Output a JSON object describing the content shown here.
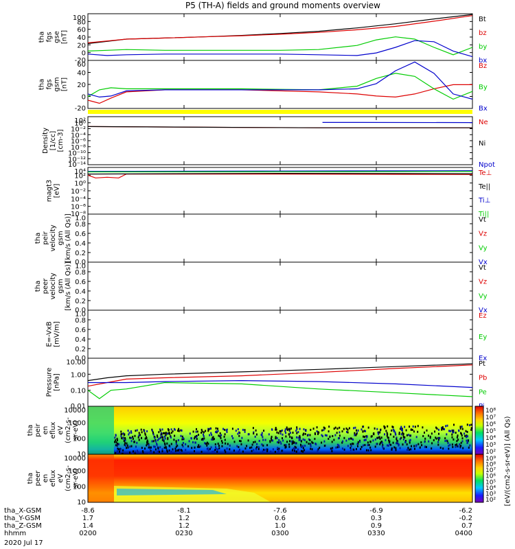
{
  "chart_data": {
    "type": "line",
    "title": "P5 (TH-A) fields and ground moments overview",
    "time_ticks": [
      "0200",
      "0230",
      "0300",
      "0330",
      "0400"
    ],
    "date_label": "2020 Jul 17",
    "ephemeris": {
      "rows": [
        {
          "label": "tha_X-GSM",
          "values": [
            "-8.6",
            "-8.1",
            "-7.6",
            "-6.9",
            "-6.2"
          ]
        },
        {
          "label": "tha_Y-GSM",
          "values": [
            "1.7",
            "1.2",
            "0.6",
            "0.3",
            "-0.2"
          ]
        },
        {
          "label": "tha_Z-GSM",
          "values": [
            "1.4",
            "1.2",
            "1.0",
            "0.9",
            "0.7"
          ]
        },
        {
          "label": "hhmm",
          "values": [
            "0200",
            "0230",
            "0300",
            "0330",
            "0400"
          ]
        }
      ]
    },
    "panels": [
      {
        "ylabel": [
          "tha",
          "fgs",
          "gse",
          "[nT]"
        ],
        "yticks": [
          "100",
          "80",
          "60",
          "40",
          "20",
          "0",
          "-20"
        ],
        "ylim": [
          -25,
          100
        ],
        "legend": [
          {
            "name": "Bt",
            "color": "#000000"
          },
          {
            "name": "bz",
            "color": "#dd0000"
          },
          {
            "name": "by",
            "color": "#00cc00"
          },
          {
            "name": "bx",
            "color": "#0000cc"
          }
        ],
        "series": [
          {
            "name": "Bt",
            "color": "#000000",
            "x": [
              0,
              0.05,
              0.1,
              0.2,
              0.3,
              0.4,
              0.5,
              0.6,
              0.7,
              0.8,
              0.9,
              1.0
            ],
            "values": [
              20,
              26,
              32,
              35,
              38,
              42,
              47,
              53,
              62,
              73,
              86,
              98
            ]
          },
          {
            "name": "bz",
            "color": "#dd0000",
            "x": [
              0,
              0.05,
              0.1,
              0.2,
              0.3,
              0.4,
              0.5,
              0.6,
              0.7,
              0.8,
              0.9,
              1.0
            ],
            "values": [
              22,
              27,
              32,
              35,
              38,
              41,
              45,
              50,
              57,
              66,
              80,
              95
            ]
          },
          {
            "name": "by",
            "color": "#00cc00",
            "x": [
              0,
              0.05,
              0.1,
              0.2,
              0.3,
              0.4,
              0.5,
              0.6,
              0.7,
              0.75,
              0.8,
              0.85,
              0.9,
              0.95,
              1.0
            ],
            "values": [
              0,
              2,
              4,
              2,
              2,
              2,
              2,
              4,
              15,
              30,
              38,
              32,
              10,
              -10,
              10
            ]
          },
          {
            "name": "bx",
            "color": "#0000cc",
            "x": [
              0,
              0.05,
              0.1,
              0.2,
              0.3,
              0.4,
              0.5,
              0.6,
              0.7,
              0.75,
              0.8,
              0.85,
              0.9,
              0.95,
              1.0
            ],
            "values": [
              -8,
              -12,
              -10,
              -8,
              -8,
              -8,
              -8,
              -10,
              -12,
              -5,
              10,
              28,
              25,
              0,
              -15
            ]
          }
        ]
      },
      {
        "ylabel": [
          "tha",
          "fgs",
          "gsm",
          "[nT]"
        ],
        "yticks": [
          "60",
          "40",
          "20",
          "0",
          "-20"
        ],
        "ylim": [
          -28,
          65
        ],
        "legend": [
          {
            "name": "Bz",
            "color": "#dd0000"
          },
          {
            "name": "By",
            "color": "#00cc00"
          },
          {
            "name": "Bx",
            "color": "#0000cc"
          }
        ],
        "series": [
          {
            "name": "Bz",
            "color": "#dd0000",
            "x": [
              0,
              0.03,
              0.06,
              0.1,
              0.2,
              0.4,
              0.6,
              0.7,
              0.75,
              0.8,
              0.85,
              0.9,
              0.95,
              1.0
            ],
            "values": [
              -12,
              -18,
              -8,
              4,
              8,
              8,
              4,
              0,
              -4,
              -6,
              0,
              10,
              18,
              18
            ]
          },
          {
            "name": "By",
            "color": "#00cc00",
            "x": [
              0,
              0.03,
              0.06,
              0.1,
              0.2,
              0.4,
              0.6,
              0.7,
              0.75,
              0.8,
              0.85,
              0.9,
              0.95,
              1.0
            ],
            "values": [
              -5,
              8,
              12,
              10,
              10,
              10,
              8,
              15,
              30,
              40,
              34,
              10,
              -10,
              5
            ]
          },
          {
            "name": "Bx",
            "color": "#0000cc",
            "x": [
              0,
              0.03,
              0.06,
              0.1,
              0.2,
              0.4,
              0.6,
              0.7,
              0.75,
              0.8,
              0.85,
              0.9,
              0.95,
              1.0
            ],
            "values": [
              0,
              -6,
              -4,
              6,
              8,
              8,
              8,
              10,
              20,
              45,
              62,
              40,
              0,
              -10
            ]
          }
        ]
      },
      {
        "ylabel": [
          "Density",
          "[1/cc]",
          "[cm-3]"
        ],
        "yticks": [
          "10²",
          "10⁰",
          "10⁻²",
          "10⁻⁴",
          "10⁻⁶",
          "10⁻⁸",
          "10⁻¹⁰",
          "10⁻¹²",
          "10⁻¹⁴"
        ],
        "log_decades": [
          -14,
          2
        ],
        "legend": [
          {
            "name": "Ne",
            "color": "#dd0000"
          },
          {
            "name": "Ni",
            "color": "#000000"
          },
          {
            "name": "Npot",
            "color": "#0000cc"
          }
        ],
        "series": [
          {
            "name": "Ne",
            "color": "#dd0000",
            "x": [
              0,
              0.3,
              0.6,
              1.0
            ],
            "values": [
              0.05,
              0.03,
              0.02,
              0.02
            ]
          },
          {
            "name": "Ni",
            "color": "#000000",
            "x": [
              0,
              0.3,
              0.6,
              1.0
            ],
            "values": [
              0.05,
              0.03,
              0.02,
              0.02
            ]
          },
          {
            "name": "Npot",
            "color": "#0000cc",
            "x": [
              0.61,
              0.7,
              1.0
            ],
            "values": [
              1.2,
              1.2,
              1.1
            ]
          }
        ]
      },
      {
        "ylabel": [
          "magt3",
          "[eV]"
        ],
        "yticks": [
          "10⁴",
          "10²",
          "10⁰",
          "10⁻²",
          "10⁻⁴",
          "10⁻⁶",
          "10⁻⁸"
        ],
        "log_decades": [
          -8,
          4
        ],
        "legend": [
          {
            "name": "Te⊥",
            "color": "#dd0000"
          },
          {
            "name": "Te||",
            "color": "#000000"
          },
          {
            "name": "Ti⊥",
            "color": "#0000cc"
          },
          {
            "name": "Ti||",
            "color": "#00cc00"
          }
        ],
        "series": [
          {
            "name": "Te⊥",
            "color": "#dd0000",
            "x": [
              0,
              0.02,
              0.05,
              0.08,
              0.1,
              0.5,
              1.0
            ],
            "values": [
              100,
              20,
              30,
              20,
              200,
              200,
              150
            ]
          },
          {
            "name": "Te||",
            "color": "#000000",
            "x": [
              0,
              0.5,
              1.0
            ],
            "values": [
              200,
              300,
              250
            ]
          },
          {
            "name": "Ti⊥",
            "color": "#0000cc",
            "x": [
              0,
              0.5,
              1.0
            ],
            "values": [
              1000,
              1200,
              1500
            ]
          },
          {
            "name": "Ti||",
            "color": "#00cc00",
            "x": [
              0,
              0.5,
              1.0
            ],
            "values": [
              700,
              800,
              900
            ]
          }
        ]
      },
      {
        "ylabel": [
          "tha",
          "peir",
          "velocity",
          "gsm",
          "[km/s (All Qs)]"
        ],
        "yticks": [
          "1.0",
          "0.8",
          "0.6",
          "0.4",
          "0.2",
          "0.0"
        ],
        "ylim": [
          0,
          1
        ],
        "legend": [
          {
            "name": "Vt",
            "color": "#000000"
          },
          {
            "name": "Vz",
            "color": "#dd0000"
          },
          {
            "name": "Vy",
            "color": "#00cc00"
          },
          {
            "name": "Vx",
            "color": "#0000cc"
          }
        ],
        "series": []
      },
      {
        "ylabel": [
          "tha",
          "peer",
          "velocity",
          "gsm",
          "[km/s (All Qs)]"
        ],
        "yticks": [
          "1.0",
          "0.8",
          "0.6",
          "0.4",
          "0.2",
          "0.0"
        ],
        "ylim": [
          0,
          1
        ],
        "legend": [
          {
            "name": "Vt",
            "color": "#000000"
          },
          {
            "name": "Vz",
            "color": "#dd0000"
          },
          {
            "name": "Vy",
            "color": "#00cc00"
          },
          {
            "name": "Vx",
            "color": "#0000cc"
          }
        ],
        "series": []
      },
      {
        "ylabel": [
          "E=-VxB",
          "[mV/m]"
        ],
        "yticks": [
          "1.0",
          "0.8",
          "0.6",
          "0.4",
          "0.2",
          "0.0"
        ],
        "ylim": [
          0,
          1
        ],
        "legend": [
          {
            "name": "Ez",
            "color": "#dd0000"
          },
          {
            "name": "Ey",
            "color": "#00cc00"
          },
          {
            "name": "Ex",
            "color": "#0000cc"
          }
        ],
        "series": []
      },
      {
        "ylabel": [
          "Pressure",
          "[nPa]"
        ],
        "yticks": [
          "10.00",
          "1.00",
          "0.10",
          "0.01"
        ],
        "log_decades": [
          -2,
          1
        ],
        "legend": [
          {
            "name": "Pt",
            "color": "#000000"
          },
          {
            "name": "Pb",
            "color": "#dd0000"
          },
          {
            "name": "Pe",
            "color": "#00cc00"
          },
          {
            "name": "Pi",
            "color": "#0000cc"
          }
        ],
        "series": [
          {
            "name": "Pt",
            "color": "#000000",
            "x": [
              0,
              0.05,
              0.1,
              0.2,
              0.4,
              0.6,
              0.8,
              1.0
            ],
            "values": [
              0.4,
              0.6,
              0.8,
              1.0,
              1.4,
              2.0,
              3.0,
              4.5
            ]
          },
          {
            "name": "Pb",
            "color": "#dd0000",
            "x": [
              0,
              0.05,
              0.1,
              0.2,
              0.4,
              0.6,
              0.8,
              1.0
            ],
            "values": [
              0.18,
              0.3,
              0.5,
              0.6,
              0.8,
              1.3,
              2.3,
              3.8
            ]
          },
          {
            "name": "Pe",
            "color": "#00cc00",
            "x": [
              0,
              0.03,
              0.06,
              0.1,
              0.2,
              0.4,
              0.6,
              0.8,
              1.0
            ],
            "values": [
              0.1,
              0.03,
              0.1,
              0.12,
              0.3,
              0.25,
              0.12,
              0.07,
              0.04
            ]
          },
          {
            "name": "Pi",
            "color": "#0000cc",
            "x": [
              0,
              0.05,
              0.1,
              0.2,
              0.4,
              0.6,
              0.8,
              1.0
            ],
            "values": [
              0.3,
              0.3,
              0.3,
              0.35,
              0.4,
              0.35,
              0.25,
              0.15
            ]
          }
        ]
      },
      {
        "type": "heatmap",
        "ylabel": [
          "tha",
          "peir",
          "en",
          "eflux",
          "eV",
          "(cm2-s-",
          "sr-eV)"
        ],
        "yticks": [
          "10000",
          "1000",
          "100",
          "10"
        ],
        "colorbar": {
          "ticks": [
            "10⁸",
            "10⁷",
            "10⁶",
            "10⁵",
            "10⁴",
            "10³",
            "10²"
          ],
          "label": "[eV/(cm2-s-sr-eV)] (All Qs)"
        }
      },
      {
        "type": "heatmap",
        "ylabel": [
          "tha",
          "peer",
          "en",
          "eflux",
          "eV",
          "(cm2-s-",
          "sr-eV)"
        ],
        "yticks": [
          "10000",
          "1000",
          "100",
          "10"
        ],
        "colorbar": {
          "ticks": [
            "10⁹",
            "10⁸",
            "10⁷",
            "10⁶",
            "10⁵",
            "10⁴",
            "10³",
            "10²"
          ],
          "label": "[eV/(cm2-s-sr-eV)] (All Qs)"
        }
      }
    ]
  }
}
